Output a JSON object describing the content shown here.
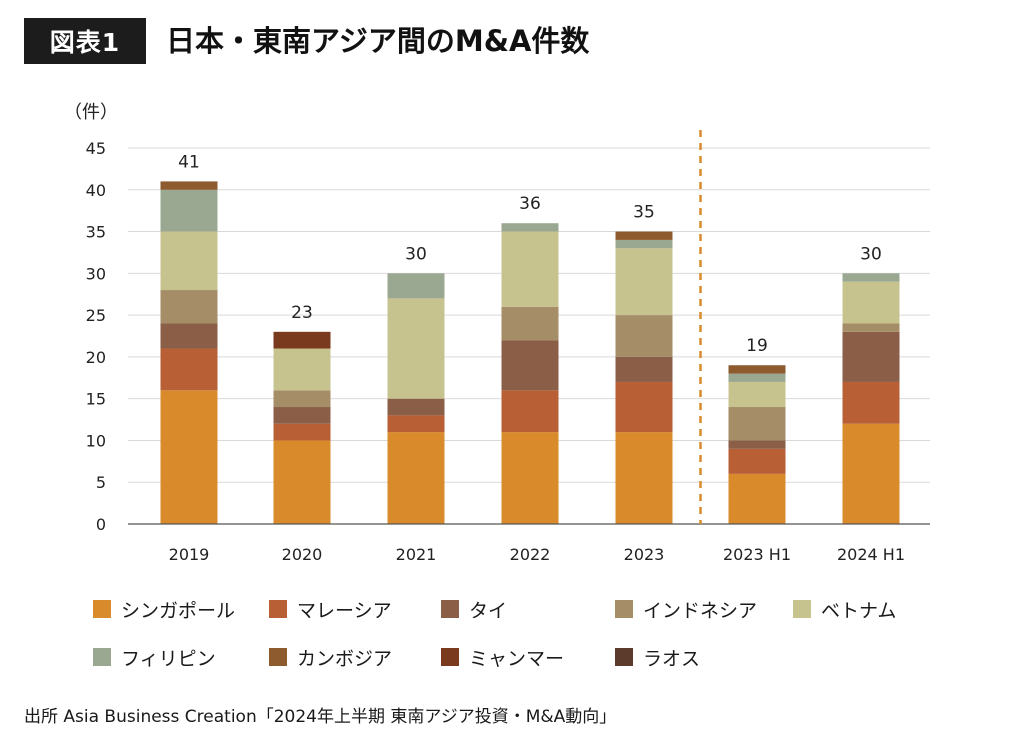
{
  "header": {
    "figure_label": "図表1",
    "title": "日本・東南アジア間のM&A件数"
  },
  "source": "出所 Asia Business Creation「2024年上半期 東南アジア投資・M&A動向」",
  "chart_data": {
    "type": "bar",
    "stacked": true,
    "title": "日本・東南アジア間のM&A件数",
    "ylabel": "（件）",
    "xlabel": "",
    "ylim": [
      0,
      45
    ],
    "yticks": [
      0,
      5,
      10,
      15,
      20,
      25,
      30,
      35,
      40,
      45
    ],
    "grid": true,
    "legend_position": "bottom",
    "divider": {
      "after_category": "2023",
      "color": "#D98B2B",
      "style": "dashed"
    },
    "categories": [
      "2019",
      "2020",
      "2021",
      "2022",
      "2023",
      "2023 H1",
      "2024 H1"
    ],
    "totals": [
      41,
      23,
      30,
      36,
      35,
      19,
      30
    ],
    "series": [
      {
        "name": "シンガポール",
        "color": "#D98B2B",
        "values": [
          16,
          10,
          11,
          11,
          11,
          6,
          12
        ]
      },
      {
        "name": "マレーシア",
        "color": "#B85F35",
        "values": [
          5,
          2,
          2,
          5,
          6,
          3,
          5
        ]
      },
      {
        "name": "タイ",
        "color": "#8A5E47",
        "values": [
          3,
          2,
          2,
          6,
          3,
          1,
          6
        ]
      },
      {
        "name": "インドネシア",
        "color": "#A58D67",
        "values": [
          4,
          2,
          0,
          4,
          5,
          4,
          1
        ]
      },
      {
        "name": "ベトナム",
        "color": "#C7C38F",
        "values": [
          7,
          5,
          12,
          9,
          8,
          3,
          5
        ]
      },
      {
        "name": "フィリピン",
        "color": "#9BA891",
        "values": [
          5,
          0,
          3,
          1,
          1,
          1,
          1
        ]
      },
      {
        "name": "カンボジア",
        "color": "#8D5B2E",
        "values": [
          1,
          0,
          0,
          0,
          1,
          1,
          0
        ]
      },
      {
        "name": "ミャンマー",
        "color": "#7A3A1E",
        "values": [
          0,
          2,
          0,
          0,
          0,
          0,
          0
        ]
      },
      {
        "name": "ラオス",
        "color": "#5C3A2C",
        "values": [
          0,
          0,
          0,
          0,
          0,
          0,
          0
        ]
      }
    ]
  }
}
